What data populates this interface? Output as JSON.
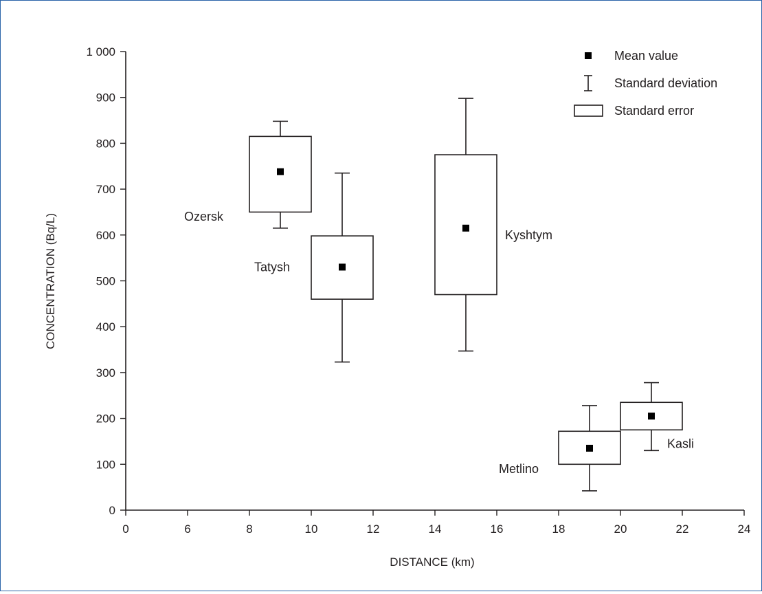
{
  "chart_data": {
    "type": "box",
    "xlabel": "DISTANCE (km)",
    "ylabel": "CONCENTRATION (Bq/L)",
    "x_ticks": [
      "0",
      "6",
      "8",
      "10",
      "12",
      "14",
      "16",
      "18",
      "20",
      "22",
      "24"
    ],
    "y_ticks": [
      "0",
      "100",
      "200",
      "300",
      "400",
      "500",
      "600",
      "700",
      "800",
      "900",
      "1 000"
    ],
    "ylim": [
      0,
      1000
    ],
    "x_axis_break": "first interval spans 0 to 6 km",
    "grid": false,
    "legend": {
      "placement": "top-right",
      "entries": [
        {
          "symbol": "mean",
          "label": "Mean value"
        },
        {
          "symbol": "sd",
          "label": "Standard deviation"
        },
        {
          "symbol": "se",
          "label": "Standard error"
        }
      ]
    },
    "series": [
      {
        "name": "Ozersk",
        "distance": 9,
        "se_range_km": [
          8,
          10
        ],
        "mean": 738,
        "se_low": 650,
        "se_high": 815,
        "sd_low": 615,
        "sd_high": 848
      },
      {
        "name": "Tatysh",
        "distance": 11,
        "se_range_km": [
          10,
          12
        ],
        "mean": 530,
        "se_low": 460,
        "se_high": 598,
        "sd_low": 323,
        "sd_high": 735
      },
      {
        "name": "Kyshtym",
        "distance": 15,
        "se_range_km": [
          14,
          16
        ],
        "mean": 615,
        "se_low": 470,
        "se_high": 775,
        "sd_low": 347,
        "sd_high": 898
      },
      {
        "name": "Metlino",
        "distance": 19,
        "se_range_km": [
          18,
          20
        ],
        "mean": 135,
        "se_low": 100,
        "se_high": 172,
        "sd_low": 42,
        "sd_high": 228
      },
      {
        "name": "Kasli",
        "distance": 21,
        "se_range_km": [
          20,
          22
        ],
        "mean": 205,
        "se_low": 175,
        "se_high": 235,
        "sd_low": 130,
        "sd_high": 278
      }
    ]
  }
}
